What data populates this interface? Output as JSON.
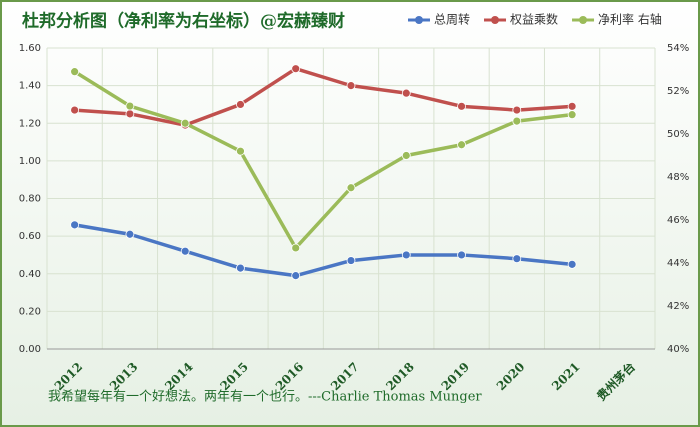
{
  "chart_data": {
    "type": "line",
    "title": "杜邦分析图（净利率为右坐标）@宏赫臻财",
    "annotation": "我希望每年有一个好想法。两年有一个也行。---Charlie Thomas Munger",
    "categories": [
      "2012",
      "2013",
      "2014",
      "2015",
      "2016",
      "2017",
      "2018",
      "2019",
      "2020",
      "2021",
      "贵州茅台"
    ],
    "series": [
      {
        "name": "总周转",
        "color": "#4a76c4",
        "values": [
          0.66,
          0.61,
          0.52,
          0.43,
          0.39,
          0.47,
          0.5,
          0.5,
          0.48,
          0.45,
          null
        ]
      },
      {
        "name": "权益乘数",
        "color": "#c0504d",
        "values": [
          1.27,
          1.25,
          1.19,
          1.3,
          1.49,
          1.4,
          1.36,
          1.29,
          1.27,
          1.29,
          null
        ]
      },
      {
        "name": "净利率 右轴",
        "color": "#9bbb59",
        "axis": "y2",
        "values": [
          52.9,
          51.3,
          50.5,
          49.2,
          44.7,
          47.5,
          49.0,
          49.5,
          50.6,
          50.9,
          null
        ]
      }
    ],
    "ylim": [
      0,
      1.6
    ],
    "yticks": [
      {
        "value": 0,
        "label": "0.00"
      },
      {
        "value": 0.2,
        "label": "0.20"
      },
      {
        "value": 0.4,
        "label": "0.40"
      },
      {
        "value": 0.6,
        "label": "0.60"
      },
      {
        "value": 0.8,
        "label": "0.80"
      },
      {
        "value": 1.0,
        "label": "1.00"
      },
      {
        "value": 1.2,
        "label": "1.20"
      },
      {
        "value": 1.4,
        "label": "1.40"
      },
      {
        "value": 1.6,
        "label": "1.60"
      }
    ],
    "y2lim": [
      40,
      54
    ],
    "y2ticks": [
      {
        "value": 40,
        "label": "40%"
      },
      {
        "value": 42,
        "label": "42%"
      },
      {
        "value": 44,
        "label": "44%"
      },
      {
        "value": 46,
        "label": "46%"
      },
      {
        "value": 48,
        "label": "48%"
      },
      {
        "value": 50,
        "label": "50%"
      },
      {
        "value": 52,
        "label": "52%"
      },
      {
        "value": 54,
        "label": "54%"
      }
    ],
    "grid": true
  }
}
